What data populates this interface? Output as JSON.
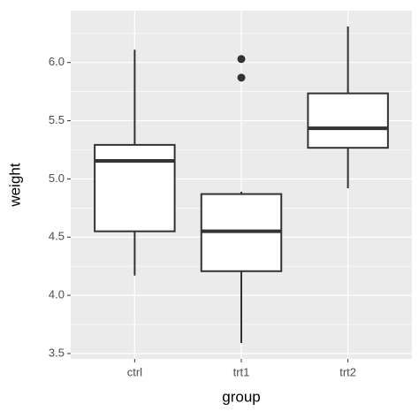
{
  "chart_data": {
    "type": "boxplot",
    "x_label": "group",
    "y_label": "weight",
    "categories": [
      "ctrl",
      "trt1",
      "trt2"
    ],
    "boxes": [
      {
        "min": 4.17,
        "q1": 4.55,
        "median": 5.155,
        "q3": 5.2925,
        "max": 6.11
      },
      {
        "min": 3.59,
        "q1": 4.2075,
        "median": 4.55,
        "q3": 4.87,
        "max": 4.89
      },
      {
        "min": 4.92,
        "q1": 5.2675,
        "median": 5.435,
        "q3": 5.735,
        "max": 6.31
      }
    ],
    "outliers": [
      [],
      [
        5.87,
        6.03
      ],
      []
    ],
    "ylim": [
      3.454,
      6.446
    ],
    "yticks": [
      3.5,
      {
        "value": 4.0,
        "label": "4.0"
      },
      4.5,
      {
        "value": 5.0,
        "label": "5.0"
      },
      5.5,
      {
        "value": 6.0,
        "label": "6.0"
      }
    ],
    "grid": true,
    "color": "#333333",
    "fill": "#ffffff",
    "panel_color": "#ebebeb"
  }
}
